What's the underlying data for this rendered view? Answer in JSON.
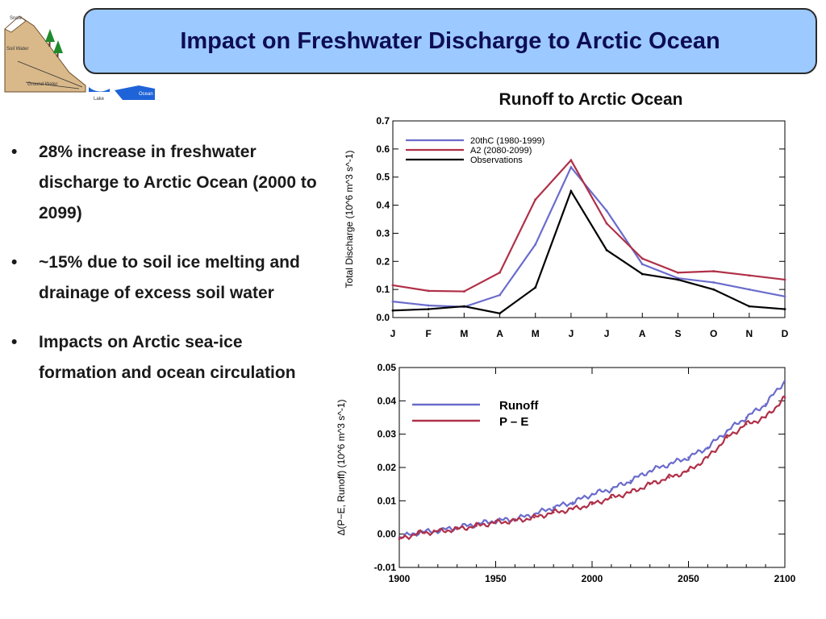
{
  "slide": {
    "title": "Impact on Freshwater Discharge to Arctic Ocean",
    "bullets": [
      "28% increase in freshwater discharge to Arctic Ocean (2000 to 2099)",
      "~15% due to soil ice melting and drainage of excess soil water",
      "Impacts on Arctic sea-ice formation and ocean circulation"
    ],
    "bullet_symbol": "•"
  },
  "logo": {
    "labels": [
      "Snow",
      "Soil Water",
      "Ground Water",
      "Lake",
      "Ocean"
    ]
  },
  "colors": {
    "title_bg": "#9cc9ff",
    "series_blue": "#6a6ccc",
    "series_red": "#b03048",
    "series_black": "#000000"
  },
  "chart_data": [
    {
      "type": "line",
      "title": "Runoff to Arctic Ocean",
      "ylabel": "Total Discharge (10^6 m^3 s^-1)",
      "xlabel": "",
      "categories": [
        "J",
        "F",
        "M",
        "A",
        "M",
        "J",
        "J",
        "A",
        "S",
        "O",
        "N",
        "D"
      ],
      "ylim": [
        0.0,
        0.7
      ],
      "yticks": [
        "0.0",
        "0.1",
        "0.2",
        "0.3",
        "0.4",
        "0.5",
        "0.6",
        "0.7"
      ],
      "legend_position": "top-left",
      "series": [
        {
          "name": "20thC (1980-1999)",
          "color": "#6a6ccc",
          "values": [
            0.057,
            0.043,
            0.038,
            0.08,
            0.26,
            0.535,
            0.38,
            0.19,
            0.14,
            0.125,
            0.1,
            0.075
          ]
        },
        {
          "name": "A2 (2080-2099)",
          "color": "#b03048",
          "values": [
            0.115,
            0.095,
            0.093,
            0.16,
            0.42,
            0.56,
            0.335,
            0.21,
            0.16,
            0.165,
            0.15,
            0.135
          ]
        },
        {
          "name": "Observations",
          "color": "#000000",
          "values": [
            0.025,
            0.03,
            0.04,
            0.015,
            0.107,
            0.45,
            0.24,
            0.155,
            0.135,
            0.1,
            0.04,
            0.03
          ]
        }
      ]
    },
    {
      "type": "line",
      "title": "",
      "ylabel": "Δ(P−E, Runoff) (10^6 m^3 s^-1)",
      "xlabel": "",
      "xlim": [
        1900,
        2100
      ],
      "xticks": [
        "1900",
        "1950",
        "2000",
        "2050",
        "2100"
      ],
      "ylim": [
        -0.01,
        0.05
      ],
      "yticks": [
        "-0.01",
        "0.00",
        "0.01",
        "0.02",
        "0.03",
        "0.04",
        "0.05"
      ],
      "legend_position": "top-left",
      "series": [
        {
          "name": "Runoff",
          "color": "#6a6ccc",
          "x": [
            1900,
            1910,
            1920,
            1930,
            1940,
            1950,
            1960,
            1970,
            1980,
            1990,
            2000,
            2010,
            2020,
            2030,
            2040,
            2050,
            2060,
            2070,
            2080,
            2090,
            2100
          ],
          "values": [
            -0.001,
            0.0005,
            0.001,
            0.002,
            0.003,
            0.004,
            0.0045,
            0.006,
            0.008,
            0.0095,
            0.012,
            0.0135,
            0.016,
            0.019,
            0.021,
            0.023,
            0.026,
            0.031,
            0.035,
            0.039,
            0.046
          ]
        },
        {
          "name": "P – E",
          "color": "#b03048",
          "x": [
            1900,
            1910,
            1920,
            1930,
            1940,
            1950,
            1960,
            1970,
            1980,
            1990,
            2000,
            2010,
            2020,
            2030,
            2040,
            2050,
            2060,
            2070,
            2080,
            2090,
            2100
          ],
          "values": [
            -0.0015,
            0.0003,
            0.0008,
            0.0015,
            0.0025,
            0.0035,
            0.004,
            0.005,
            0.0065,
            0.0075,
            0.009,
            0.011,
            0.0125,
            0.015,
            0.017,
            0.019,
            0.023,
            0.029,
            0.033,
            0.035,
            0.041
          ]
        }
      ]
    }
  ]
}
